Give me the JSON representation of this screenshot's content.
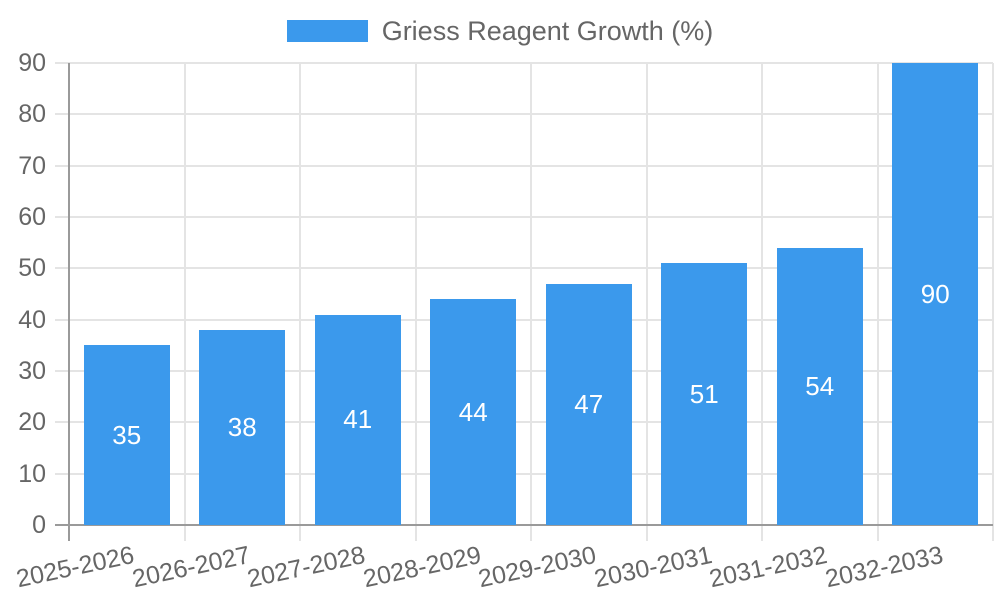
{
  "chart_data": {
    "type": "bar",
    "title": "",
    "legend_label": "Griess Reagent Growth (%)",
    "legend_position": "top",
    "categories": [
      "2025-2026",
      "2026-2027",
      "2027-2028",
      "2028-2029",
      "2029-2030",
      "2030-2031",
      "2031-2032",
      "2032-2033"
    ],
    "values": [
      35,
      38,
      41,
      44,
      47,
      51,
      54,
      90
    ],
    "value_labels": [
      "35",
      "38",
      "41",
      "44",
      "47",
      "51",
      "54",
      "90"
    ],
    "xlabel": "",
    "ylabel": "",
    "ylim": [
      0,
      90
    ],
    "yticks": [
      0,
      10,
      20,
      30,
      40,
      50,
      60,
      70,
      80,
      90
    ],
    "grid": true,
    "x_tick_rotation_deg": -12,
    "colors": {
      "bar": "#3b99ec",
      "grid": "#e4e4e4",
      "axis": "#9a9a9a",
      "tick_text": "#666666",
      "value_text": "#ffffff",
      "background": "#ffffff"
    }
  }
}
